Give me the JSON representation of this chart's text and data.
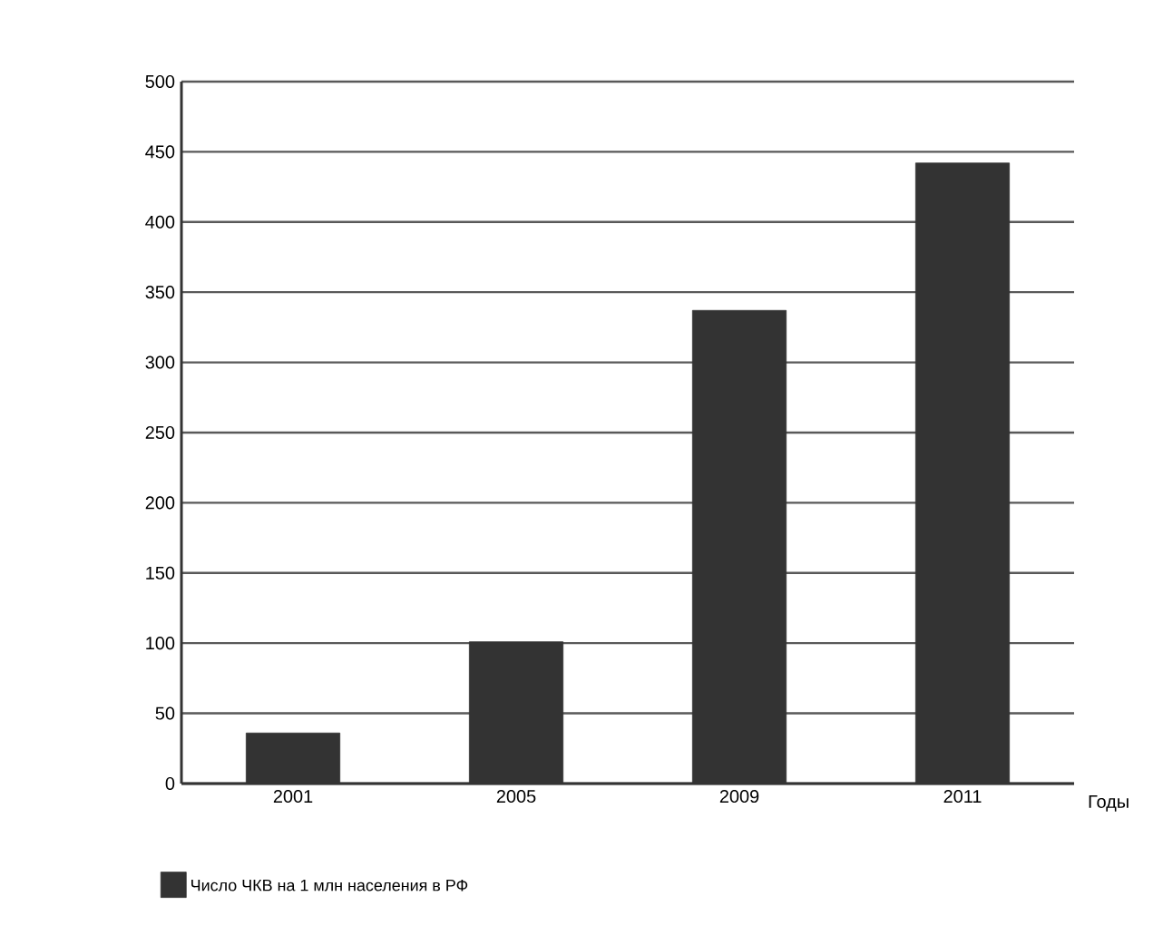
{
  "chart_data": {
    "type": "bar",
    "categories": [
      "2001",
      "2005",
      "2009",
      "2011"
    ],
    "series": [
      {
        "name": "Число ЧКВ на 1 млн населения в РФ",
        "color": "#333333",
        "values": [
          36,
          101,
          337,
          442
        ]
      }
    ],
    "xlabel": "Годы",
    "ylim": [
      0,
      500
    ],
    "yticks": [
      0,
      50,
      100,
      150,
      200,
      250,
      300,
      350,
      400,
      450,
      500
    ],
    "grid": "y",
    "legend": "bottom left"
  }
}
